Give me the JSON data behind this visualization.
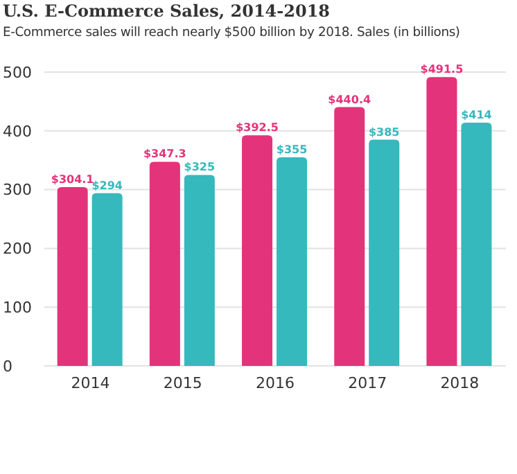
{
  "chart_data": {
    "type": "bar",
    "title": "U.S. E-Commerce Sales, 2014-2018",
    "subtitle": "E-Commerce sales will reach nearly $500 billion by 2018. Sales (in billions)",
    "categories": [
      "2014",
      "2015",
      "2016",
      "2017",
      "2018"
    ],
    "series": [
      {
        "color": "#e3337a",
        "values": [
          304.1,
          347.3,
          392.5,
          440.4,
          491.5
        ],
        "value_labels": [
          "$304.1",
          "$347.3",
          "$392.5",
          "$440.4",
          "$491.5"
        ]
      },
      {
        "color": "#35b9bd",
        "values": [
          294,
          325,
          355,
          385,
          414
        ],
        "value_labels": [
          "$294",
          "$325",
          "$355",
          "$385",
          "$414"
        ]
      }
    ],
    "ylim": [
      0,
      500
    ],
    "yticks": [
      0,
      100,
      200,
      300,
      400,
      500
    ],
    "grid": "y",
    "legend": false
  }
}
